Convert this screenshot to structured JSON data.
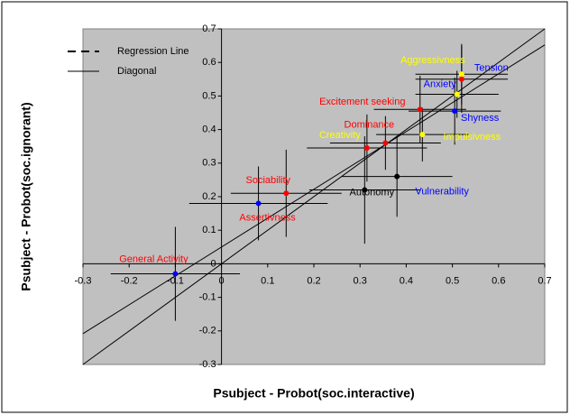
{
  "chart_data": {
    "type": "scatter",
    "xlabel": "Psubject - Probot(soc.interactive)",
    "ylabel": "Psubject - Probot(soc.ignorant)",
    "labels": [
      "General Activity",
      "Assertivness",
      "Sociability",
      "Autonomy",
      "Vulnerability",
      "Creativity",
      "Dominance",
      "Impulsivness",
      "Excitement seeking",
      "Shyness",
      "Anxiety",
      "Aggressivness",
      "Tension"
    ],
    "x": [
      -0.1,
      0.08,
      0.14,
      0.31,
      0.38,
      0.315,
      0.355,
      0.435,
      0.43,
      0.505,
      0.51,
      0.52,
      0.52
    ],
    "y": [
      -0.03,
      0.18,
      0.21,
      0.22,
      0.26,
      0.345,
      0.36,
      0.385,
      0.46,
      0.455,
      0.505,
      0.565,
      0.55
    ],
    "xerr": [
      0.14,
      0.15,
      0.12,
      0.12,
      0.12,
      0.13,
      0.12,
      0.1,
      0.1,
      0.1,
      0.09,
      0.1,
      0.1
    ],
    "yerr": [
      0.14,
      0.11,
      0.13,
      0.16,
      0.12,
      0.1,
      0.08,
      0.08,
      0.1,
      0.1,
      0.07,
      0.09,
      0.1
    ],
    "colors": [
      "#0000ff",
      "#0000ff",
      "#ff0000",
      "#000000",
      "#000000",
      "#ff0000",
      "#ff0000",
      "#ffff00",
      "#ff0000",
      "#0000ff",
      "#ffff00",
      "#ffff00",
      "#ff0000"
    ],
    "label_colors": [
      "#ff0000",
      "#ff0000",
      "#ff0000",
      "#000000",
      "#0000ff",
      "#ffff00",
      "#ff0000",
      "#ffff00",
      "#ff0000",
      "#0000ff",
      "#0000ff",
      "#ffff00",
      "#0000ff"
    ],
    "regression": {
      "name": "Regression Line",
      "slope": 0.86,
      "intercept": 0.05
    },
    "diagonal": {
      "name": "Diagonal"
    },
    "xlim": [
      -0.3,
      0.7
    ],
    "ylim": [
      -0.3,
      0.7
    ],
    "xticks": [
      -0.3,
      -0.2,
      -0.1,
      0,
      0.1,
      0.2,
      0.3,
      0.4,
      0.5,
      0.6,
      0.7
    ],
    "yticks": [
      -0.3,
      -0.2,
      -0.1,
      0,
      0.1,
      0.2,
      0.3,
      0.4,
      0.5,
      0.6,
      0.7
    ],
    "plot_color": "#c0c0c0"
  }
}
